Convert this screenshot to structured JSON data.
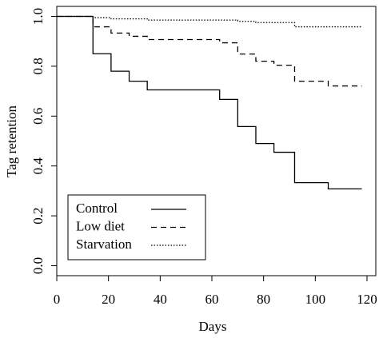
{
  "chart_data": {
    "type": "step",
    "x_label": "Days",
    "y_label": "Tag retention",
    "xlim": [
      0,
      123.4
    ],
    "ylim": [
      -0.04,
      1.04
    ],
    "xticks": [
      0,
      20,
      40,
      60,
      80,
      100,
      120
    ],
    "yticks": [
      {
        "value": 0,
        "label": "0.0"
      },
      {
        "value": 0.2,
        "label": "0.2"
      },
      {
        "value": 0.4,
        "label": "0.4"
      },
      {
        "value": 0.6,
        "label": "0.6"
      },
      {
        "value": 0.8,
        "label": "0.8"
      },
      {
        "value": 1,
        "label": "1.0"
      }
    ],
    "legend": "bottom-left",
    "series": [
      {
        "name": "Control",
        "color": "#000000",
        "dash": "none",
        "x": [
          0,
          14,
          21,
          28,
          35,
          63,
          70,
          77,
          84,
          92,
          105,
          118
        ],
        "values": [
          1,
          0.85,
          0.78,
          0.74,
          0.705,
          0.667,
          0.558,
          0.49,
          0.455,
          0.333,
          0.308,
          0.308
        ]
      },
      {
        "name": "Low diet",
        "color": "#000000",
        "dash": "7,5",
        "x": [
          0,
          14,
          21,
          28,
          35,
          63,
          70,
          77,
          84,
          92,
          105,
          118
        ],
        "values": [
          1,
          0.958,
          0.933,
          0.92,
          0.907,
          0.894,
          0.849,
          0.82,
          0.804,
          0.74,
          0.721,
          0.721
        ]
      },
      {
        "name": "Starvation",
        "color": "#000000",
        "dash": "1.5,2",
        "x": [
          0,
          14,
          21,
          35,
          70,
          77,
          92,
          118
        ],
        "values": [
          1,
          0.995,
          0.99,
          0.985,
          0.98,
          0.975,
          0.958,
          0.955
        ]
      }
    ]
  }
}
